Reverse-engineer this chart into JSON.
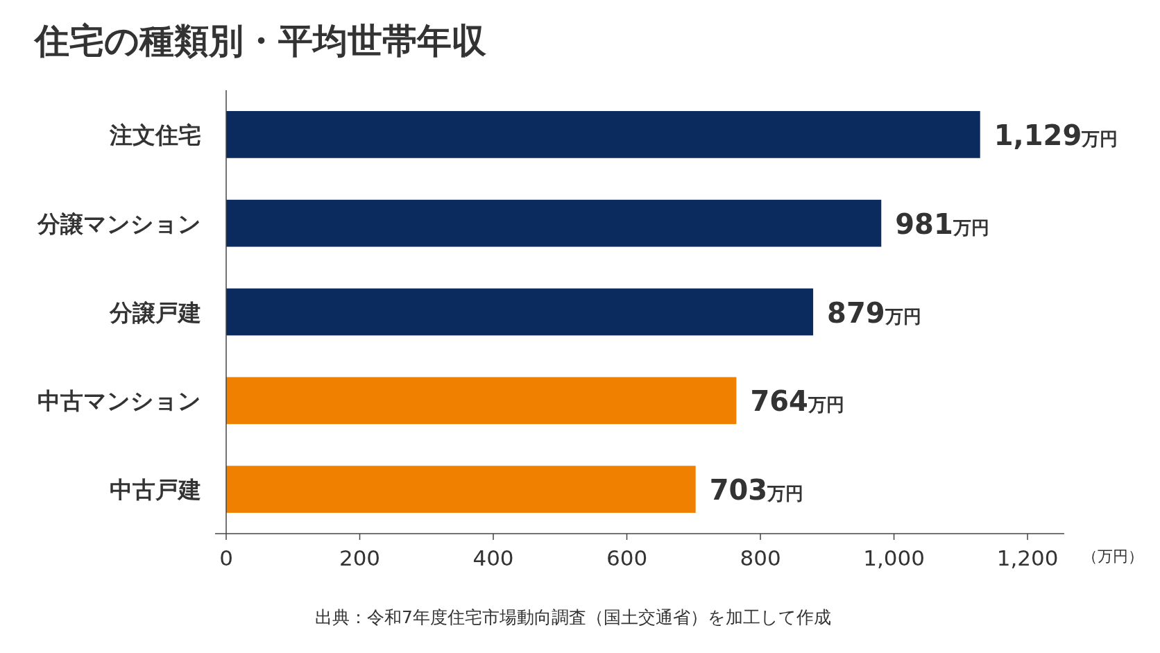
{
  "chart_data": {
    "type": "bar",
    "orientation": "horizontal",
    "title": "住宅の種類別・平均世帯年収",
    "categories": [
      "注文住宅",
      "分譲マンション",
      "分譲戸建",
      "中古マンション",
      "中古戸建"
    ],
    "values": [
      1129,
      981,
      879,
      764,
      703
    ],
    "colors": [
      "#0b2a5e",
      "#0b2a5e",
      "#0b2a5e",
      "#f08000",
      "#f08000"
    ],
    "value_labels": [
      "1,129万円",
      "981万円",
      "879万円",
      "764万円",
      "703万円"
    ],
    "xlim": [
      0,
      1255
    ],
    "xticks": [
      0,
      200,
      400,
      600,
      800,
      {
        "value": 1000,
        "label": "1,000"
      },
      {
        "value": 1200,
        "label": "1,200"
      }
    ],
    "xlabel": "（万円）",
    "grid": false,
    "annotations": [
      "出典：令和7年度住宅市場動向調査（国土交通省）を加工して作成"
    ]
  }
}
